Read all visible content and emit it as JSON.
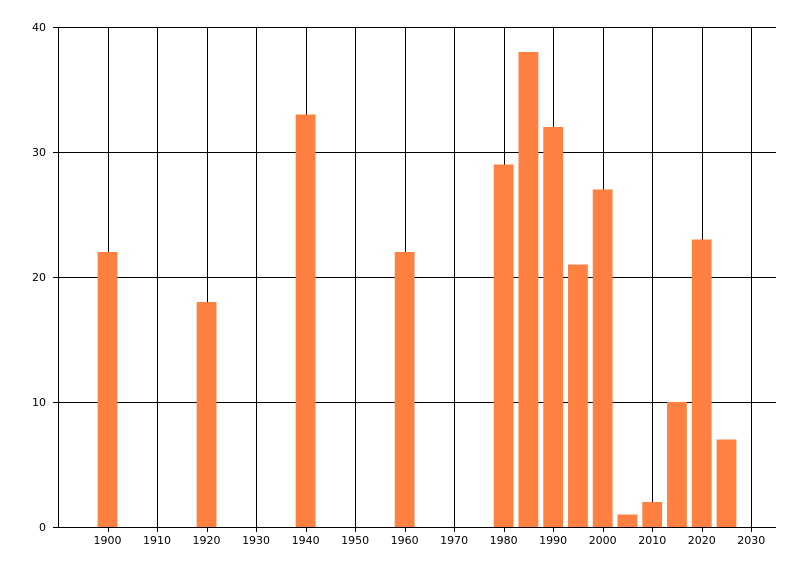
{
  "chart_data": {
    "type": "bar",
    "title": "",
    "xlabel": "",
    "ylabel": "",
    "x": [
      1900,
      1920,
      1940,
      1960,
      1980,
      1985,
      1990,
      1995,
      2000,
      2005,
      2010,
      2015,
      2020,
      2025
    ],
    "values": [
      22,
      18,
      33,
      22,
      29,
      38,
      32,
      21,
      27,
      1,
      2,
      10,
      23,
      7
    ],
    "xlim": [
      1890,
      2035
    ],
    "ylim": [
      0,
      40
    ],
    "x_ticks": [
      1900,
      1910,
      1920,
      1930,
      1940,
      1950,
      1960,
      1970,
      1980,
      1990,
      2000,
      2010,
      2020,
      2030
    ],
    "y_ticks": [
      0,
      10,
      20,
      30,
      40
    ],
    "bar_width_years": 4,
    "grid": true,
    "legend": "none",
    "colors": {
      "bar": "#FF8040",
      "grid": "#000000",
      "axis": "#000000",
      "background": "#FFFFFF"
    }
  }
}
